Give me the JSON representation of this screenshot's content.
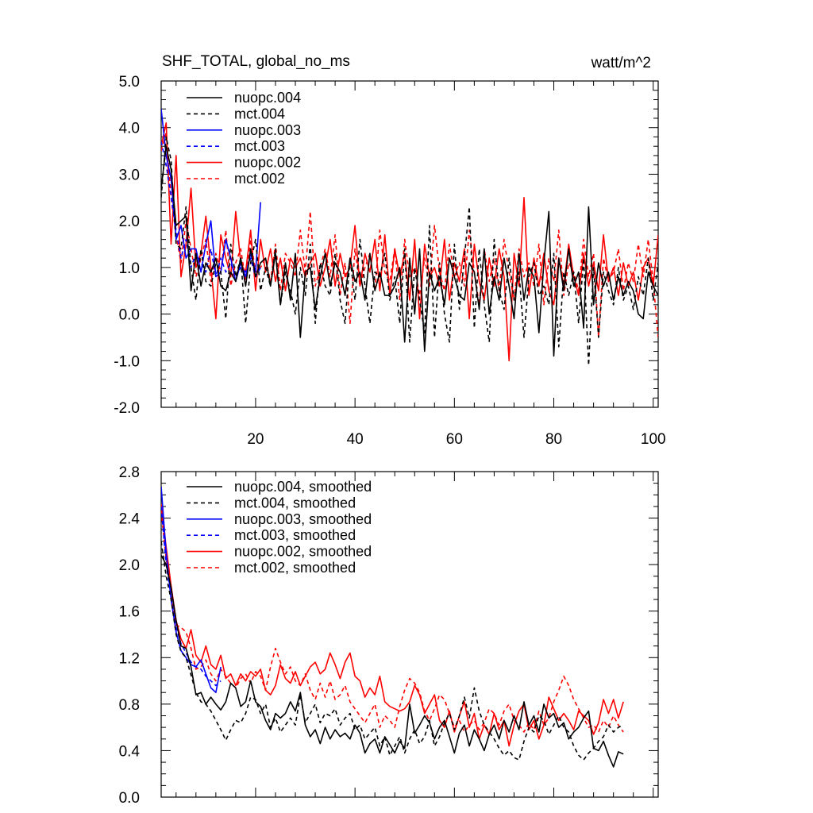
{
  "chart_data": [
    {
      "type": "line",
      "title": "SHF_TOTAL, global_no_ms",
      "units": "watt/m^2",
      "xlim": [
        1,
        101
      ],
      "ylim": [
        -2.0,
        5.0
      ],
      "xticks": [
        20,
        40,
        60,
        80,
        100
      ],
      "xtick_labels": [
        "20",
        "40",
        "60",
        "80",
        "100"
      ],
      "yticks": [
        -2.0,
        -1.0,
        0.0,
        1.0,
        2.0,
        3.0,
        4.0,
        5.0
      ],
      "ytick_labels": [
        "-2.0",
        "-1.0",
        "0.0",
        "1.0",
        "2.0",
        "3.0",
        "4.0",
        "5.0"
      ],
      "legend_position": "top-left",
      "series": [
        {
          "name": "nuopc.004",
          "color": "#000000",
          "dash": "solid",
          "values": [
            2.7,
            3.6,
            3.1,
            1.9,
            2.0,
            2.1,
            0.5,
            1.3,
            0.6,
            1.1,
            0.9,
            1.2,
            0.6,
            0.5,
            0.9,
            0.7,
            1.2,
            0.6,
            1.4,
            0.8,
            1.1,
            1.2,
            0.6,
            1.3,
            0.2,
            1.1,
            0.3,
            1.3,
            -0.5,
            0.9,
            1.0,
            0.1,
            0.8,
            1.3,
            0.6,
            1.1,
            0.9,
            0.4,
            1.2,
            0.7,
            0.9,
            0.3,
            1.3,
            0.5,
            0.9,
            0.4,
            0.4,
            0.6,
            1.0,
            -0.6,
            1.2,
            0.0,
            1.4,
            -0.8,
            0.9,
            0.5,
            0.8,
            0.2,
            1.2,
            0.8,
            0.4,
            0.3,
            1.1,
            0.9,
            0.1,
            1.4,
            0.0,
            0.8,
            0.3,
            1.2,
            0.6,
            -0.1,
            1.3,
            0.3,
            1.0,
            0.8,
            -0.4,
            1.1,
            2.2,
            -0.9,
            1.2,
            0.5,
            1.4,
            0.6,
            0.9,
            -0.3,
            2.3,
            0.2,
            1.1,
            0.6,
            0.9,
            0.3,
            0.8,
            0.4,
            0.7,
            0.5,
            0.0,
            -0.1,
            0.9,
            0.6,
            0.4
          ]
        },
        {
          "name": "mct.004",
          "color": "#000000",
          "dash": "dashed",
          "values": [
            2.5,
            3.8,
            3.3,
            1.5,
            1.4,
            2.3,
            1.0,
            0.3,
            1.4,
            0.7,
            0.6,
            1.1,
            0.9,
            -0.1,
            1.5,
            0.8,
            1.2,
            -0.2,
            1.1,
            1.6,
            0.5,
            1.0,
            0.6,
            1.4,
            0.2,
            0.9,
            0.5,
            0.0,
            1.0,
            0.4,
            1.5,
            -0.2,
            1.1,
            0.6,
            0.4,
            1.3,
            0.3,
            -0.2,
            1.2,
            0.3,
            1.6,
            0.6,
            -0.2,
            0.9,
            0.8,
            1.3,
            0.3,
            0.8,
            -0.2,
            1.4,
            -0.6,
            1.0,
            0.3,
            -0.4,
            1.9,
            -0.5,
            1.1,
            0.0,
            -0.6,
            1.5,
            0.1,
            1.2,
            2.3,
            -0.3,
            1.4,
            0.2,
            -0.6,
            1.6,
            0.5,
            0.1,
            1.2,
            0.3,
            0.9,
            -0.5,
            0.8,
            1.1,
            0.4,
            0.6,
            0.2,
            1.3,
            -0.7,
            0.9,
            0.4,
            0.9,
            -0.2,
            1.2,
            -1.1,
            1.0,
            -0.5,
            0.9,
            0.5,
            0.2,
            1.0,
            0.3,
            0.6,
            0.1,
            0.8,
            0.4,
            1.2,
            0.3,
            1.1
          ]
        },
        {
          "name": "nuopc.003",
          "color": "#0000ff",
          "dash": "solid",
          "values": [
            4.4,
            3.4,
            2.9,
            1.6,
            1.9,
            1.2,
            1.4,
            1.4,
            0.9,
            1.5,
            2.0,
            0.8,
            0.9,
            1.6,
            1.2,
            0.7,
            1.1,
            0.8,
            1.3,
            0.9,
            2.4
          ]
        },
        {
          "name": "mct.003",
          "color": "#0000ff",
          "dash": "dashed",
          "values": [
            3.7,
            3.2,
            2.5,
            1.8,
            1.2,
            1.6,
            1.0,
            1.3,
            1.1,
            0.9,
            1.4,
            0.8,
            1.2,
            0.9,
            1.1,
            0.8,
            1.0,
            0.9,
            1.2,
            0.8,
            1.0
          ]
        },
        {
          "name": "nuopc.002",
          "color": "#ff0000",
          "dash": "solid",
          "values": [
            3.6,
            4.1,
            1.5,
            3.4,
            0.8,
            1.5,
            2.7,
            1.0,
            1.3,
            2.1,
            1.0,
            -0.1,
            1.7,
            1.2,
            0.8,
            2.2,
            1.1,
            0.9,
            1.8,
            0.5,
            1.6,
            0.9,
            1.4,
            0.7,
            1.2,
            0.5,
            1.2,
            1.0,
            1.2,
            0.8,
            1.1,
            1.3,
            0.6,
            1.0,
            1.6,
            0.6,
            1.3,
            0.8,
            1.0,
            1.9,
            0.6,
            1.3,
            0.9,
            1.6,
            0.5,
            1.7,
            0.4,
            1.4,
            0.8,
            1.3,
            0.3,
            1.6,
            -0.1,
            1.5,
            0.8,
            1.0,
            0.6,
            1.6,
            0.3,
            1.1,
            0.7,
            1.4,
            -0.1,
            1.5,
            0.7,
            0.3,
            1.2,
            0.6,
            1.4,
            0.8,
            -1.0,
            1.3,
            0.6,
            2.5,
            0.4,
            1.2,
            0.6,
            1.3,
            0.5,
            0.2,
            1.2,
            0.6,
            1.5,
            0.8,
            0.4,
            1.3,
            0.6,
            1.1,
            0.5,
            1.7,
            0.7,
            1.0,
            0.4,
            1.1,
            0.6,
            0.9,
            0.3,
            1.0,
            1.2,
            0.6,
            1.7
          ]
        },
        {
          "name": "mct.002",
          "color": "#ff0000",
          "dash": "dashed",
          "values": [
            3.5,
            3.9,
            2.5,
            1.7,
            1.1,
            2.0,
            1.4,
            0.8,
            1.2,
            1.6,
            0.7,
            1.3,
            0.9,
            1.8,
            0.6,
            1.1,
            1.4,
            0.7,
            1.6,
            0.9,
            1.0,
            1.2,
            0.7,
            1.5,
            0.5,
            1.3,
            1.1,
            0.8,
            1.8,
            0.9,
            2.2,
            0.6,
            1.0,
            1.4,
            0.8,
            1.7,
            0.4,
            1.1,
            -0.2,
            1.4,
            0.6,
            1.0,
            1.3,
            0.5,
            1.8,
            0.9,
            0.7,
            1.4,
            0.3,
            1.6,
            0.8,
            1.0,
            0.4,
            1.2,
            0.6,
            1.9,
            0.9,
            0.5,
            1.5,
            0.8,
            1.1,
            0.6,
            1.8,
            0.9,
            0.2,
            1.4,
            0.7,
            1.2,
            0.5,
            1.6,
            0.9,
            0.3,
            1.4,
            0.8,
            1.1,
            0.6,
            1.5,
            0.2,
            1.2,
            0.7,
            1.8,
            0.4,
            1.1,
            0.9,
            0.5,
            1.6,
            0.8,
            1.3,
            -0.5,
            1.2,
            0.7,
            0.9,
            1.4,
            0.5,
            1.1,
            0.7,
            1.5,
            0.8,
            1.6,
            0.7,
            -0.5
          ]
        }
      ]
    },
    {
      "type": "line",
      "title": "",
      "xlim": [
        1,
        101
      ],
      "ylim": [
        0.0,
        2.8
      ],
      "yticks": [
        0.0,
        0.4,
        0.8,
        1.2,
        1.6,
        2.0,
        2.4,
        2.8
      ],
      "ytick_labels": [
        "0.0",
        "0.4",
        "0.8",
        "1.2",
        "1.6",
        "2.0",
        "2.4",
        "2.8"
      ],
      "legend_position": "top-left",
      "series": [
        {
          "name": "nuopc.004, smoothed",
          "color": "#000000",
          "dash": "solid",
          "values": [
            2.08,
            2.0,
            1.8,
            1.52,
            1.3,
            1.28,
            1.12,
            0.88,
            0.9,
            0.8,
            0.86,
            0.8,
            0.75,
            0.82,
            0.98,
            0.94,
            0.78,
            0.82,
            1.0,
            0.82,
            0.78,
            0.66,
            0.58,
            0.72,
            0.68,
            0.72,
            0.82,
            0.74,
            0.9,
            0.62,
            0.52,
            0.58,
            0.46,
            0.6,
            0.5,
            0.58,
            0.52,
            0.55,
            0.5,
            0.62,
            0.55,
            0.38,
            0.46,
            0.5,
            0.38,
            0.52,
            0.45,
            0.38,
            0.48,
            0.42,
            0.8,
            0.55,
            0.62,
            0.7,
            0.64,
            0.5,
            0.6,
            0.66,
            0.52,
            0.38,
            0.55,
            0.62,
            0.44,
            0.58,
            0.5,
            0.4,
            0.54,
            0.62,
            0.5,
            0.66,
            0.56,
            0.7,
            0.58,
            0.82,
            0.62,
            0.7,
            0.56,
            0.8,
            0.68,
            0.72,
            0.6,
            0.64,
            0.5,
            0.56,
            0.6,
            0.68,
            0.74,
            0.42,
            0.4,
            0.48,
            0.36,
            0.26,
            0.39,
            0.37
          ]
        },
        {
          "name": "mct.004, smoothed",
          "color": "#000000",
          "dash": "dashed",
          "values": [
            2.2,
            1.9,
            1.7,
            1.4,
            1.25,
            1.2,
            1.05,
            0.9,
            0.82,
            0.8,
            0.74,
            0.66,
            0.58,
            0.49,
            0.58,
            0.66,
            0.64,
            0.72,
            0.86,
            0.84,
            0.72,
            0.8,
            0.6,
            0.68,
            0.56,
            0.62,
            0.68,
            0.62,
            0.88,
            0.64,
            0.72,
            0.8,
            0.64,
            0.72,
            0.7,
            0.76,
            0.62,
            0.68,
            0.72,
            0.58,
            0.62,
            0.5,
            0.55,
            0.6,
            0.44,
            0.52,
            0.36,
            0.44,
            0.52,
            0.38,
            0.5,
            0.58,
            0.46,
            0.52,
            0.66,
            0.44,
            0.52,
            0.64,
            0.72,
            0.58,
            0.7,
            0.86,
            0.68,
            0.94,
            0.74,
            0.62,
            0.56,
            0.5,
            0.42,
            0.36,
            0.4,
            0.34,
            0.32,
            0.48,
            0.6,
            0.56,
            0.7,
            0.66,
            0.54,
            0.62,
            0.7,
            0.6,
            0.56,
            0.44,
            0.36,
            0.32,
            0.38,
            0.42,
            0.48,
            0.52,
            0.62,
            0.56,
            0.6,
            0.62
          ]
        },
        {
          "name": "nuopc.003, smoothed",
          "color": "#0000ff",
          "dash": "solid",
          "values": [
            2.67,
            2.1,
            1.7,
            1.42,
            1.26,
            1.2,
            1.14,
            1.12,
            1.18,
            1.06,
            0.94,
            0.9,
            1.12
          ]
        },
        {
          "name": "mct.003, smoothed",
          "color": "#0000ff",
          "dash": "dashed",
          "values": [
            2.5,
            2.0,
            1.72,
            1.46,
            1.32,
            1.24,
            1.16,
            1.12,
            1.1,
            1.04,
            1.0,
            0.96,
            1.0
          ]
        },
        {
          "name": "nuopc.002, smoothed",
          "color": "#ff0000",
          "dash": "solid",
          "values": [
            2.52,
            2.15,
            1.82,
            1.52,
            1.36,
            1.28,
            1.44,
            1.22,
            1.16,
            1.3,
            1.14,
            1.1,
            1.22,
            1.02,
            1.06,
            0.96,
            1.06,
            1.0,
            1.08,
            1.04,
            1.1,
            0.92,
            0.88,
            0.96,
            1.14,
            1.02,
            0.98,
            1.08,
            0.96,
            1.04,
            1.12,
            1.16,
            1.06,
            1.1,
            1.24,
            1.14,
            1.02,
            1.16,
            1.24,
            1.04,
            1.0,
            0.86,
            0.94,
            0.88,
            1.04,
            0.82,
            0.78,
            0.76,
            0.74,
            0.76,
            0.82,
            0.96,
            0.88,
            0.72,
            0.8,
            0.88,
            0.66,
            0.6,
            0.74,
            0.56,
            0.7,
            0.82,
            0.6,
            0.72,
            0.5,
            0.62,
            0.54,
            0.72,
            0.58,
            0.66,
            0.44,
            0.62,
            0.74,
            0.8,
            0.58,
            0.66,
            0.5,
            0.62,
            0.86,
            0.76,
            0.66,
            0.72,
            0.66,
            0.58,
            0.74,
            0.7,
            0.66,
            0.54,
            0.64,
            0.84,
            0.72,
            0.84,
            0.68,
            0.82
          ]
        },
        {
          "name": "mct.002, smoothed",
          "color": "#ff0000",
          "dash": "dashed",
          "values": [
            2.46,
            2.05,
            1.75,
            1.48,
            1.46,
            1.42,
            1.28,
            1.1,
            1.12,
            1.18,
            1.06,
            1.0,
            1.1,
            1.04,
            0.98,
            0.94,
            1.02,
            1.06,
            0.98,
            1.08,
            1.04,
            0.92,
            1.12,
            1.28,
            1.16,
            1.06,
            1.12,
            1.0,
            0.96,
            1.06,
            0.92,
            0.84,
            0.98,
            0.86,
            1.0,
            0.84,
            0.88,
            0.96,
            0.82,
            0.76,
            0.7,
            0.64,
            0.72,
            0.8,
            0.6,
            0.7,
            0.66,
            0.6,
            0.78,
            0.92,
            1.02,
            0.98,
            0.9,
            0.74,
            0.66,
            0.76,
            0.88,
            0.84,
            0.72,
            0.6,
            0.66,
            0.56,
            0.62,
            0.66,
            0.58,
            0.64,
            0.76,
            0.72,
            0.62,
            0.74,
            0.8,
            0.66,
            0.62,
            0.56,
            0.64,
            0.58,
            0.74,
            0.62,
            0.68,
            0.82,
            0.92,
            1.04,
            0.96,
            0.84,
            0.76,
            0.68,
            0.6,
            0.62,
            0.56,
            0.66,
            0.6,
            0.7,
            0.62,
            0.56
          ]
        }
      ]
    }
  ]
}
